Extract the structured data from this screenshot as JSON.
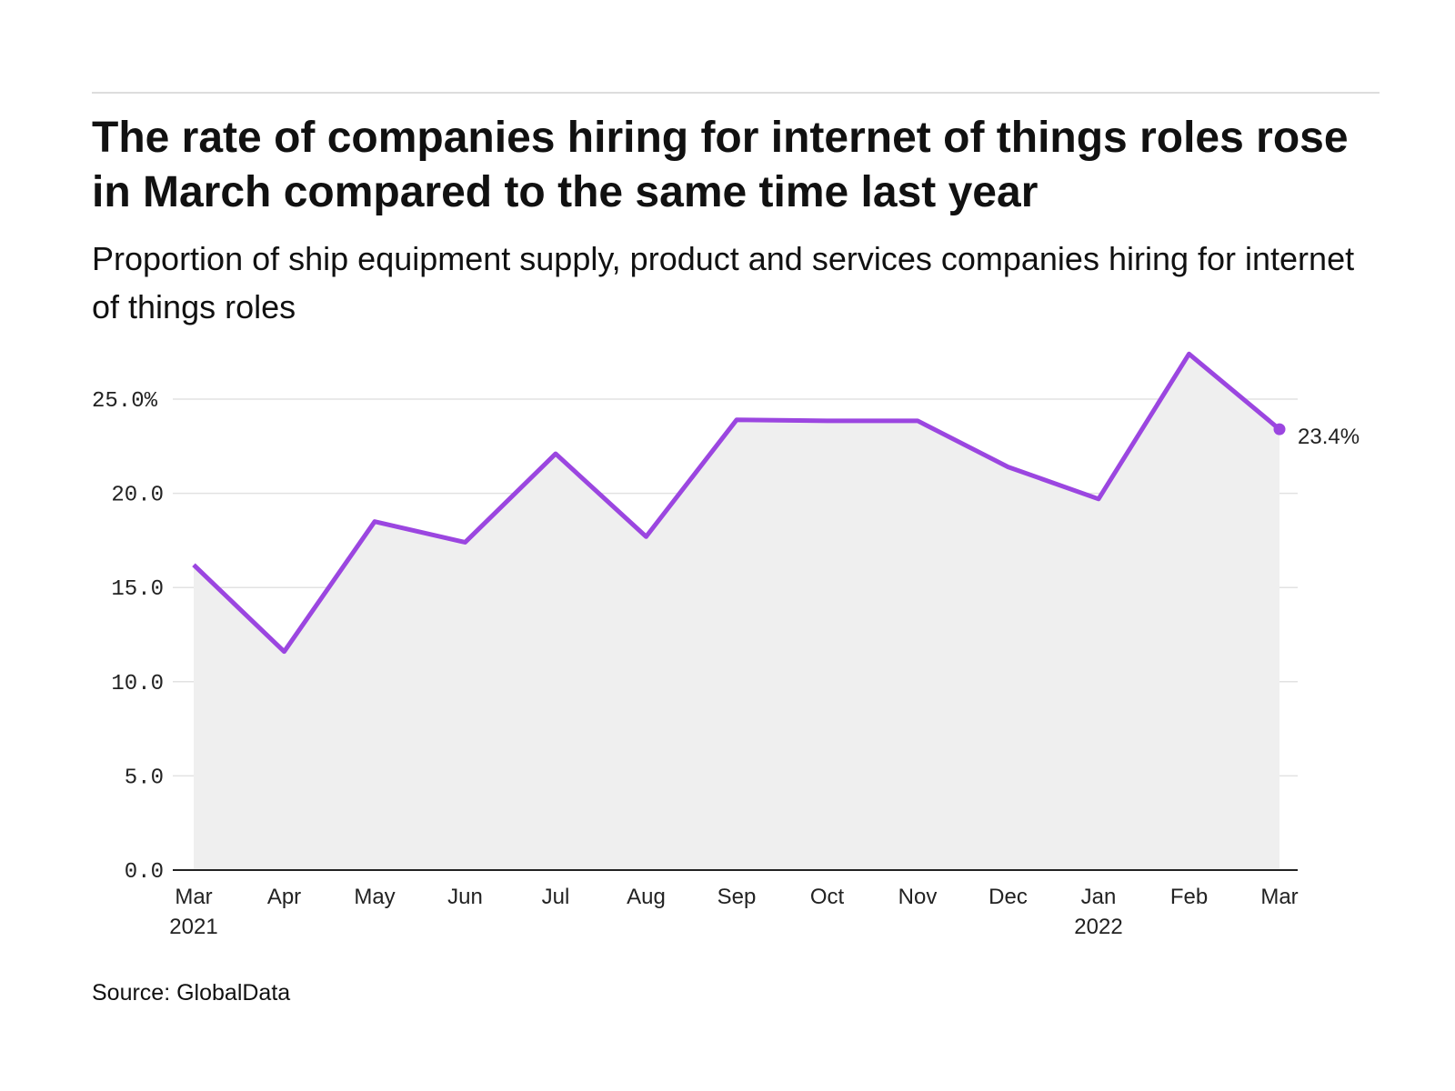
{
  "title": "The rate of companies hiring for internet of things roles rose in March compared to the same time last year",
  "subtitle": "Proportion of ship equipment supply, product and services companies hiring for internet of things roles",
  "source": "Source: GlobalData",
  "colors": {
    "line": "#9b46e0",
    "area": "#efefef",
    "grid": "#e2e2e2"
  },
  "chart_data": {
    "type": "line",
    "title": "The rate of companies hiring for internet of things roles rose in March compared to the same time last year",
    "x": [
      "Mar 2021",
      "Apr",
      "May",
      "Jun",
      "Jul",
      "Aug",
      "Sep",
      "Oct",
      "Nov",
      "Dec",
      "Jan 2022",
      "Feb",
      "Mar"
    ],
    "x_tick_labels": [
      [
        "Mar",
        "2021"
      ],
      [
        "Apr",
        ""
      ],
      [
        "May",
        ""
      ],
      [
        "Jun",
        ""
      ],
      [
        "Jul",
        ""
      ],
      [
        "Aug",
        ""
      ],
      [
        "Sep",
        ""
      ],
      [
        "Oct",
        ""
      ],
      [
        "Nov",
        ""
      ],
      [
        "Dec",
        ""
      ],
      [
        "Jan",
        "2022"
      ],
      [
        "Feb",
        ""
      ],
      [
        "Mar",
        ""
      ]
    ],
    "values": [
      16.2,
      11.6,
      18.5,
      17.4,
      22.1,
      17.7,
      23.9,
      23.85,
      23.85,
      21.4,
      19.7,
      27.4,
      23.4
    ],
    "ylim": [
      0,
      25
    ],
    "y_ticks": [
      0,
      5,
      10,
      15,
      20,
      25
    ],
    "y_tick_labels": [
      "0.0",
      "5.0",
      "10.0",
      "15.0",
      "20.0",
      "25.0%"
    ],
    "end_label": "23.4%",
    "grid": true,
    "xlabel": "",
    "ylabel": ""
  }
}
